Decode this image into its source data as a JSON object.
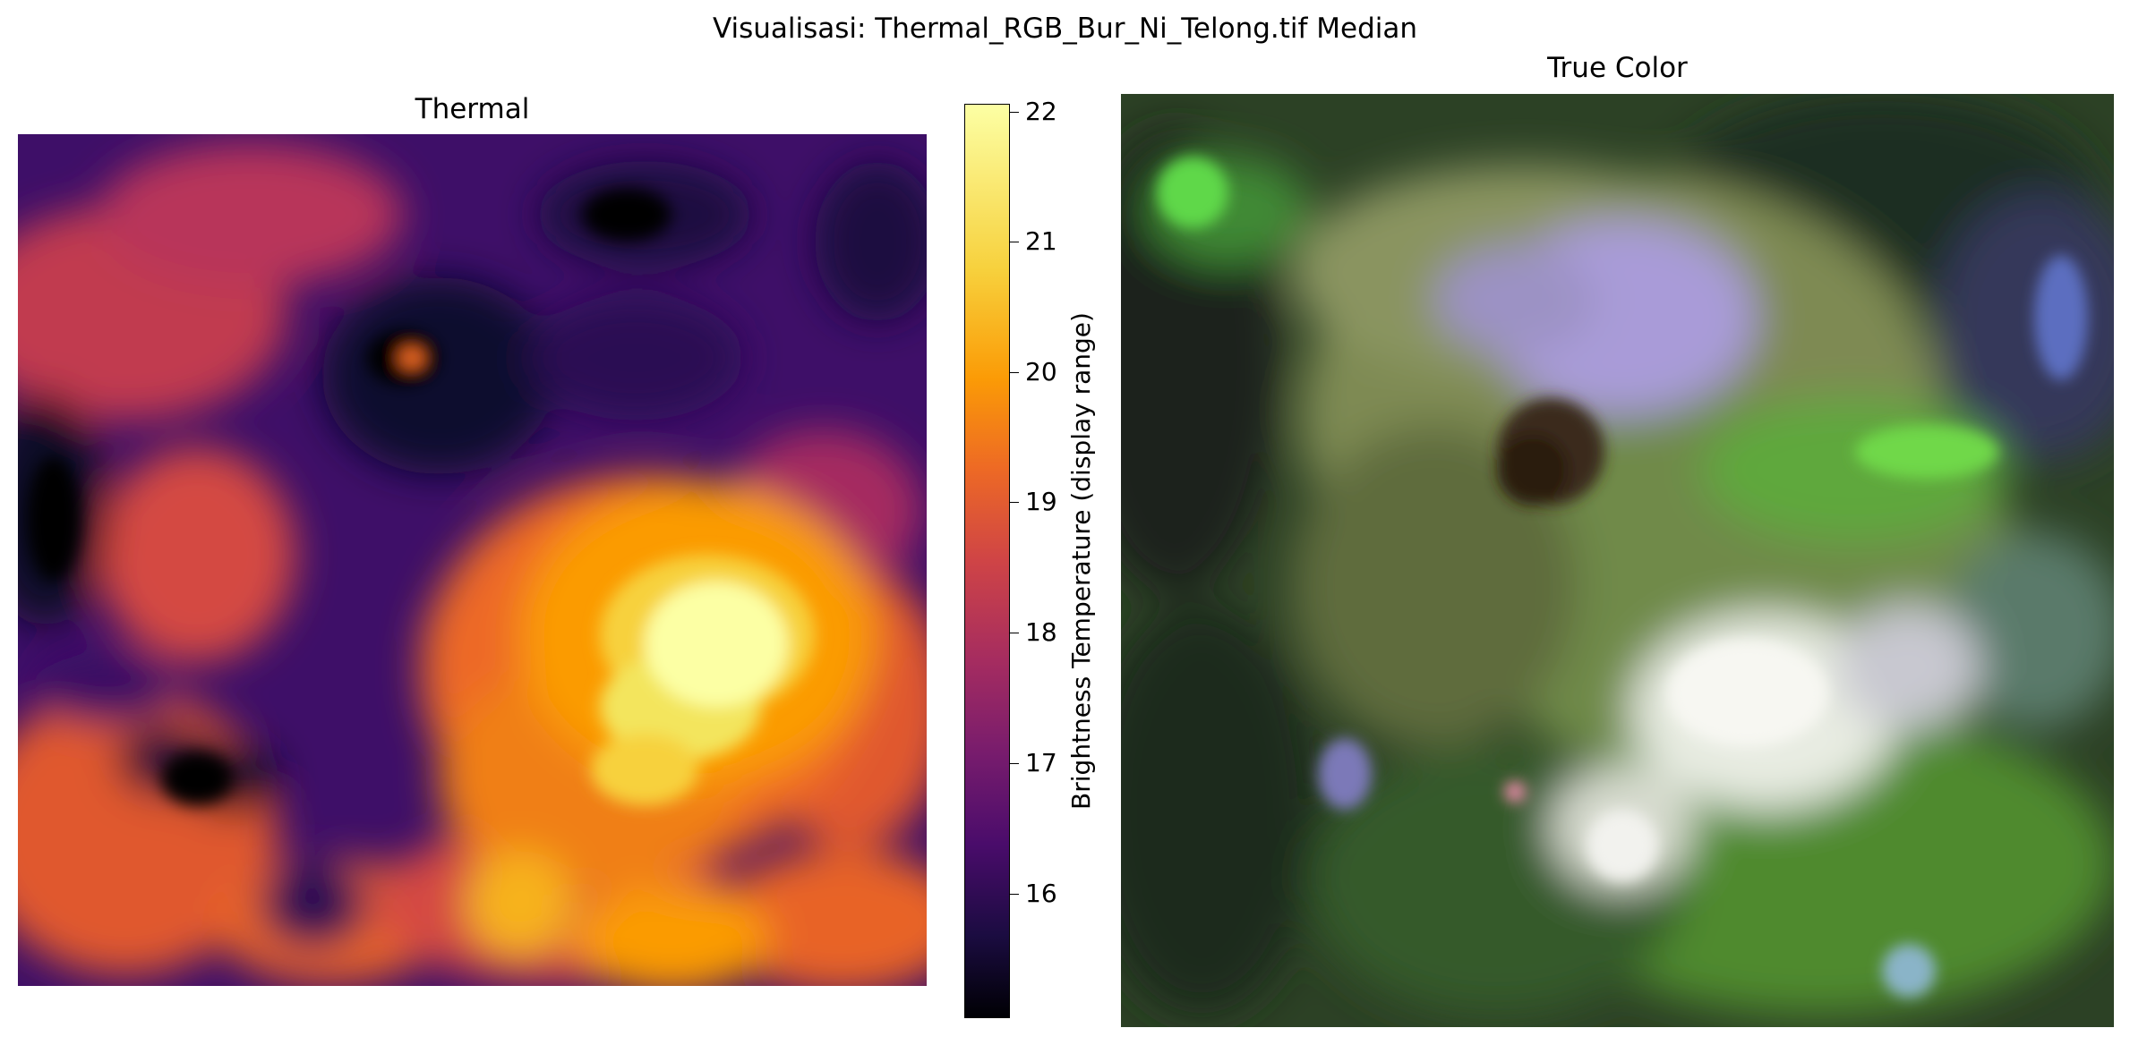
{
  "figure": {
    "suptitle": "Visualisasi: Thermal_RGB_Bur_Ni_Telong.tif Median"
  },
  "thermal": {
    "title": "Thermal",
    "colormap": "inferno",
    "colorbar": {
      "label": "Brightness Temperature (display range)",
      "min": 15.1,
      "max": 22.1,
      "ticks": [
        "16",
        "17",
        "18",
        "19",
        "20",
        "21",
        "22"
      ]
    }
  },
  "true_color": {
    "title": "True Color"
  },
  "colors": {
    "thermal_hot": "#fcffa4",
    "thermal_warm": "#fb9b06",
    "thermal_mid": "#cf4446",
    "thermal_cool": "#4a0c6b",
    "thermal_cold": "#000004",
    "rgb_vegetation": "#4f8a2f",
    "rgb_bright_green": "#5fd84a",
    "rgb_olive": "#8e9a5e",
    "rgb_lavender": "#a99bd8",
    "rgb_white": "#eef0ea",
    "rgb_dark": "#1a1f1a"
  }
}
